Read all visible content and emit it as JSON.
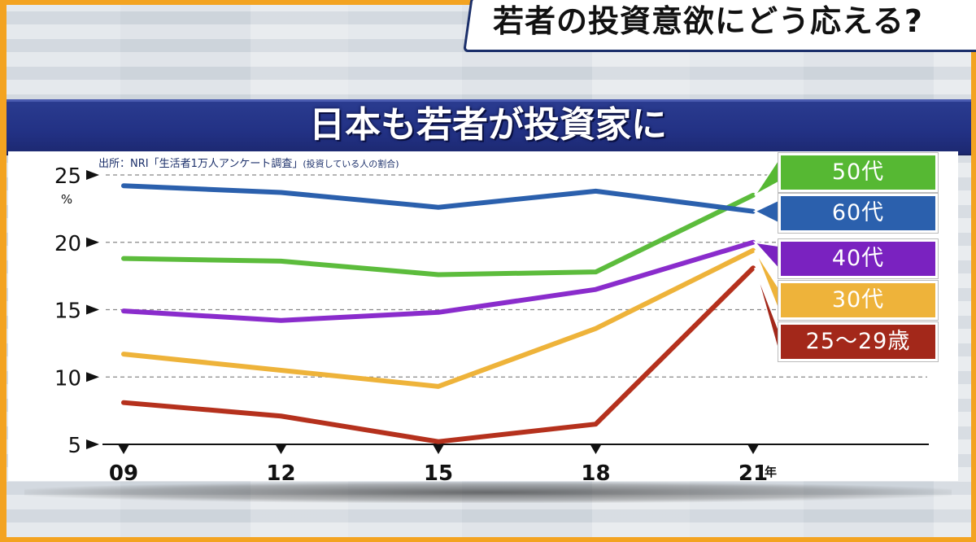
{
  "header": {
    "topic": "若者の投資意欲にどう応える?"
  },
  "title": "日本も若者が投資家に",
  "source": {
    "main": "出所：NRI「生活者1万人アンケート調査」",
    "note": "(投資している人の割合)"
  },
  "chart_data": {
    "type": "line",
    "x": [
      "09",
      "12",
      "15",
      "18",
      "21"
    ],
    "x_unit": "年",
    "y_unit": "%",
    "ylim": [
      5,
      25
    ],
    "y_ticks": [
      5,
      10,
      15,
      20,
      25
    ],
    "grid": true,
    "series": [
      {
        "name": "60代",
        "color": "#2b60ad",
        "values": [
          24.2,
          23.7,
          22.6,
          23.8,
          22.3
        ]
      },
      {
        "name": "50代",
        "color": "#5cbc3c",
        "values": [
          18.8,
          18.6,
          17.6,
          17.8,
          23.5
        ]
      },
      {
        "name": "40代",
        "color": "#8a2ccc",
        "values": [
          14.9,
          14.2,
          14.8,
          16.5,
          20.0
        ]
      },
      {
        "name": "30代",
        "color": "#eeb33a",
        "values": [
          11.7,
          10.5,
          9.3,
          13.6,
          19.4
        ]
      },
      {
        "name": "25〜29歳",
        "color": "#b5311d",
        "values": [
          8.1,
          7.1,
          5.2,
          6.5,
          18.1
        ]
      }
    ]
  },
  "legend": [
    {
      "label": "50代",
      "color": "#56b833"
    },
    {
      "label": "60代",
      "color": "#2b60ad"
    },
    {
      "label": "40代",
      "color": "#7a22c0"
    },
    {
      "label": "30代",
      "color": "#eeb33a"
    },
    {
      "label": "25〜29歳",
      "color": "#a3281a"
    }
  ]
}
